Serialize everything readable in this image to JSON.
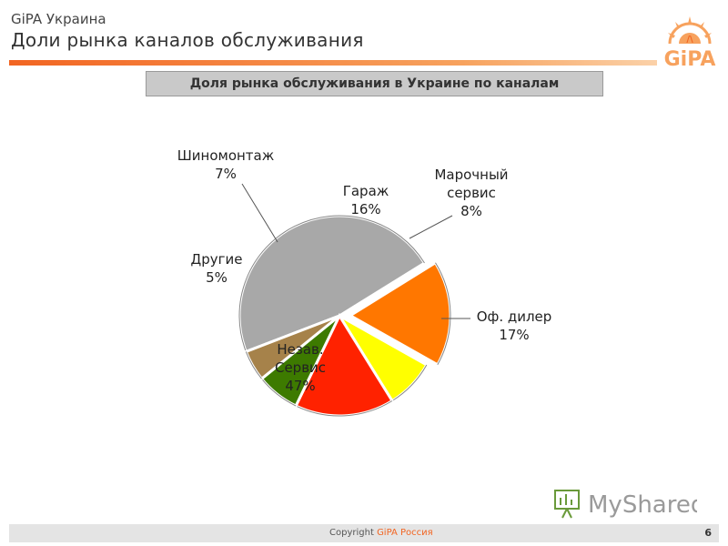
{
  "header": {
    "org": "GiPA Украина",
    "title": "Доли рынка каналов обслуживания"
  },
  "logo": {
    "text": "GiPA"
  },
  "chart_data": {
    "type": "pie",
    "title": "Доля рынка обслуживания в Украине по каналам",
    "slices": [
      {
        "name": "Незав. Сервис",
        "lines": [
          "Незав.",
          "Сервис"
        ],
        "value": 47,
        "label": "47%",
        "color": "#a8a8a8",
        "exploded": false
      },
      {
        "name": "Оф. дилер",
        "lines": [
          "Оф. дилер"
        ],
        "value": 17,
        "label": "17%",
        "color": "#ff7700",
        "exploded": true
      },
      {
        "name": "Марочный сервис",
        "lines": [
          "Марочный",
          "сервис"
        ],
        "value": 8,
        "label": "8%",
        "color": "#ffff00",
        "exploded": false
      },
      {
        "name": "Гараж",
        "lines": [
          "Гараж"
        ],
        "value": 16,
        "label": "16%",
        "color": "#ff2200",
        "exploded": false
      },
      {
        "name": "Шиномонтаж",
        "lines": [
          "Шиномонтаж"
        ],
        "value": 7,
        "label": "7%",
        "color": "#3d7a00",
        "exploded": false
      },
      {
        "name": "Другие",
        "lines": [
          "Другие"
        ],
        "value": 5,
        "label": "5%",
        "color": "#a6824a",
        "exploded": false
      }
    ]
  },
  "watermark": {
    "text": "MyShared"
  },
  "footer": {
    "copyright_label": "Copyright",
    "copyright_org": "GiPA Россия",
    "page_number": "6"
  }
}
